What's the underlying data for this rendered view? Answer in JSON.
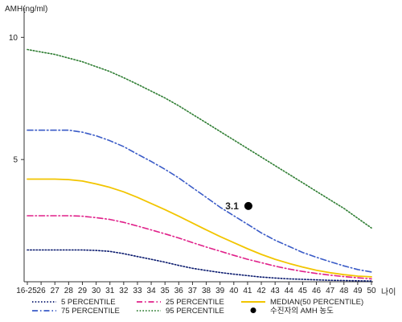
{
  "chart_data": {
    "type": "line",
    "ylabel": "AMH(ng/ml)",
    "xlabel": "나이",
    "ylim": [
      0,
      11
    ],
    "y_ticks": [
      5,
      10
    ],
    "x_ticks": [
      "16-25",
      "26",
      "27",
      "28",
      "29",
      "30",
      "31",
      "32",
      "33",
      "34",
      "35",
      "36",
      "37",
      "38",
      "39",
      "40",
      "41",
      "42",
      "43",
      "44",
      "45",
      "46",
      "47",
      "48",
      "49",
      "50"
    ],
    "grid": false,
    "legend_position": "bottom",
    "series": [
      {
        "name": "5 PERCENTILE",
        "color": "#0a1a6e",
        "dash": "dotted",
        "values": [
          1.3,
          1.3,
          1.3,
          1.3,
          1.3,
          1.28,
          1.24,
          1.15,
          1.03,
          0.92,
          0.8,
          0.67,
          0.55,
          0.46,
          0.38,
          0.31,
          0.25,
          0.19,
          0.15,
          0.12,
          0.1,
          0.08,
          0.06,
          0.05,
          0.04,
          0.03
        ]
      },
      {
        "name": "25 PERCENTILE",
        "color": "#e0218a",
        "dash": "dashdot",
        "values": [
          2.7,
          2.7,
          2.7,
          2.7,
          2.68,
          2.62,
          2.55,
          2.43,
          2.28,
          2.12,
          1.96,
          1.79,
          1.6,
          1.42,
          1.25,
          1.08,
          0.92,
          0.78,
          0.64,
          0.52,
          0.42,
          0.34,
          0.27,
          0.21,
          0.16,
          0.12
        ]
      },
      {
        "name": "75 PERCENTILE",
        "color": "#3a5bc7",
        "dash": "dashdot",
        "values": [
          6.2,
          6.2,
          6.2,
          6.2,
          6.12,
          5.97,
          5.77,
          5.53,
          5.22,
          4.92,
          4.6,
          4.25,
          3.85,
          3.45,
          3.05,
          2.7,
          2.35,
          2.0,
          1.7,
          1.45,
          1.2,
          1.0,
          0.82,
          0.65,
          0.5,
          0.4
        ]
      },
      {
        "name": "95 PERCENTILE",
        "color": "#2e7d32",
        "dash": "dotted",
        "values": [
          9.5,
          9.4,
          9.3,
          9.15,
          9.0,
          8.8,
          8.6,
          8.35,
          8.08,
          7.8,
          7.52,
          7.2,
          6.85,
          6.5,
          6.15,
          5.8,
          5.45,
          5.1,
          4.75,
          4.4,
          4.05,
          3.7,
          3.35,
          3.0,
          2.6,
          2.2
        ]
      },
      {
        "name": "MEDIAN(50 PERCENTILE)",
        "color": "#f2c500",
        "dash": "solid",
        "values": [
          4.2,
          4.2,
          4.2,
          4.18,
          4.12,
          4.0,
          3.86,
          3.68,
          3.45,
          3.2,
          2.95,
          2.68,
          2.4,
          2.12,
          1.85,
          1.6,
          1.35,
          1.12,
          0.92,
          0.75,
          0.6,
          0.47,
          0.37,
          0.29,
          0.23,
          0.2
        ]
      }
    ],
    "points": [
      {
        "name": "수진자의 AMH 농도",
        "x": "41",
        "y": 3.1,
        "label": "3.1",
        "color": "#000000"
      }
    ]
  }
}
